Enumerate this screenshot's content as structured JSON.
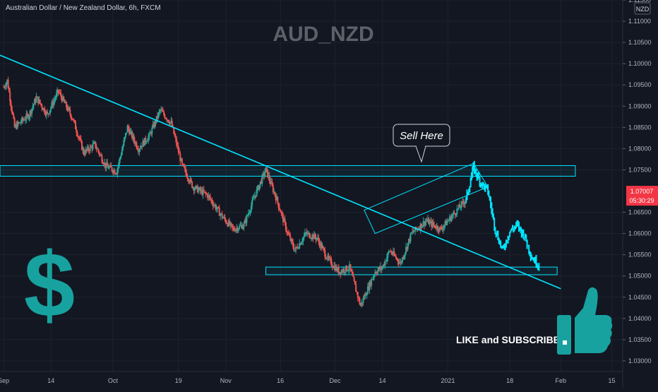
{
  "header": {
    "symbol_description": "Australian Dollar / New Zealand Dollar, 6h, FXCM"
  },
  "watermark": "AUD_NZD",
  "annotations": {
    "sell_label": "Sell Here",
    "cta_text": "LIKE and SUBSCRIBE",
    "dollar_glyph": "$"
  },
  "price_axis": {
    "currency_badge": "NZD",
    "current_price": "1.07007",
    "countdown": "05:30:29",
    "labels": [
      "1.11500",
      "1.11000",
      "1.10500",
      "1.10000",
      "1.09500",
      "1.09000",
      "1.08500",
      "1.08000",
      "1.07500",
      "1.06500",
      "1.06000",
      "1.05500",
      "1.05000",
      "1.04500",
      "1.04000",
      "1.03500",
      "1.03000"
    ]
  },
  "colors": {
    "background": "#131722",
    "up_candle": "#26a69a",
    "down_candle": "#ef5350",
    "trend_and_boxes": "#00e5ff",
    "forecast_path": "#00e5ff",
    "price_badge": "#f23645",
    "dollar_icon": "#17a2a0",
    "thumbs_up_icon": "#17a2a0"
  },
  "chart_data": {
    "type": "candlestick",
    "instrument": "AUD/NZD",
    "timeframe": "6h",
    "source": "FXCM",
    "ylim": [
      1.0275,
      1.115
    ],
    "xlim": [
      "2020-08-31",
      "2021-02-18"
    ],
    "x_ticks": [
      {
        "date": "2020-09-01",
        "label": "Sep"
      },
      {
        "date": "2020-09-14",
        "label": "14"
      },
      {
        "date": "2020-10-01",
        "label": "Oct"
      },
      {
        "date": "2020-10-19",
        "label": "19"
      },
      {
        "date": "2020-11-01",
        "label": "Nov"
      },
      {
        "date": "2020-11-16",
        "label": "16"
      },
      {
        "date": "2020-12-01",
        "label": "Dec"
      },
      {
        "date": "2020-12-14",
        "label": "14"
      },
      {
        "date": "2021-01-01",
        "label": "2021"
      },
      {
        "date": "2021-01-18",
        "label": "18"
      },
      {
        "date": "2021-02-01",
        "label": "Feb"
      },
      {
        "date": "2021-02-15",
        "label": "15"
      }
    ],
    "price_path": [
      [
        "2020-09-01",
        1.0945
      ],
      [
        "2020-09-02",
        1.096
      ],
      [
        "2020-09-04",
        1.085
      ],
      [
        "2020-09-08",
        1.088
      ],
      [
        "2020-09-10",
        1.092
      ],
      [
        "2020-09-13",
        1.088
      ],
      [
        "2020-09-16",
        1.0935
      ],
      [
        "2020-09-20",
        1.087
      ],
      [
        "2020-09-23",
        1.079
      ],
      [
        "2020-09-26",
        1.081
      ],
      [
        "2020-09-29",
        1.076
      ],
      [
        "2020-10-02",
        1.0745
      ],
      [
        "2020-10-05",
        1.085
      ],
      [
        "2020-10-08",
        1.08
      ],
      [
        "2020-10-11",
        1.083
      ],
      [
        "2020-10-14",
        1.089
      ],
      [
        "2020-10-17",
        1.086
      ],
      [
        "2020-10-20",
        1.076
      ],
      [
        "2020-10-23",
        1.071
      ],
      [
        "2020-10-27",
        1.069
      ],
      [
        "2020-10-31",
        1.064
      ],
      [
        "2020-11-03",
        1.061
      ],
      [
        "2020-11-06",
        1.062
      ],
      [
        "2020-11-09",
        1.069
      ],
      [
        "2020-11-12",
        1.075
      ],
      [
        "2020-11-15",
        1.068
      ],
      [
        "2020-11-18",
        1.06
      ],
      [
        "2020-11-20",
        1.056
      ],
      [
        "2020-11-23",
        1.06
      ],
      [
        "2020-11-26",
        1.059
      ],
      [
        "2020-11-29",
        1.054
      ],
      [
        "2020-12-02",
        1.051
      ],
      [
        "2020-12-05",
        1.052
      ],
      [
        "2020-12-08",
        1.043
      ],
      [
        "2020-12-10",
        1.047
      ],
      [
        "2020-12-12",
        1.051
      ],
      [
        "2020-12-14",
        1.052
      ],
      [
        "2020-12-16",
        1.056
      ],
      [
        "2020-12-19",
        1.053
      ],
      [
        "2020-12-22",
        1.06
      ],
      [
        "2020-12-26",
        1.063
      ],
      [
        "2020-12-30",
        1.061
      ],
      [
        "2021-01-03",
        1.065
      ],
      [
        "2021-01-06",
        1.068
      ]
    ],
    "forecast_path": [
      [
        "2021-01-06",
        1.068
      ],
      [
        "2021-01-08",
        1.0755
      ],
      [
        "2021-01-10",
        1.072
      ],
      [
        "2021-01-12",
        1.07
      ],
      [
        "2021-01-14",
        1.061
      ],
      [
        "2021-01-16",
        1.056
      ],
      [
        "2021-01-18",
        1.0605
      ],
      [
        "2021-01-20",
        1.062
      ],
      [
        "2021-01-22",
        1.0595
      ],
      [
        "2021-01-24",
        1.0545
      ],
      [
        "2021-01-26",
        1.0525
      ]
    ],
    "trendline": {
      "from": [
        "2020-08-31",
        1.102
      ],
      "to": [
        "2021-02-01",
        1.047
      ]
    },
    "resistance_zone": {
      "x0": "2020-08-31",
      "x1": "2021-02-05",
      "y0": 1.0735,
      "y1": 1.076
    },
    "support_zone": {
      "x0": "2020-11-12",
      "x1": "2021-01-31",
      "y0": 1.0503,
      "y1": 1.0521
    },
    "channel": {
      "corners": [
        [
          "2020-12-09",
          1.0655
        ],
        [
          "2021-01-08",
          1.0765
        ],
        [
          "2021-01-12",
          1.071
        ],
        [
          "2020-12-12",
          1.06
        ]
      ]
    },
    "last_price": 1.07007
  }
}
